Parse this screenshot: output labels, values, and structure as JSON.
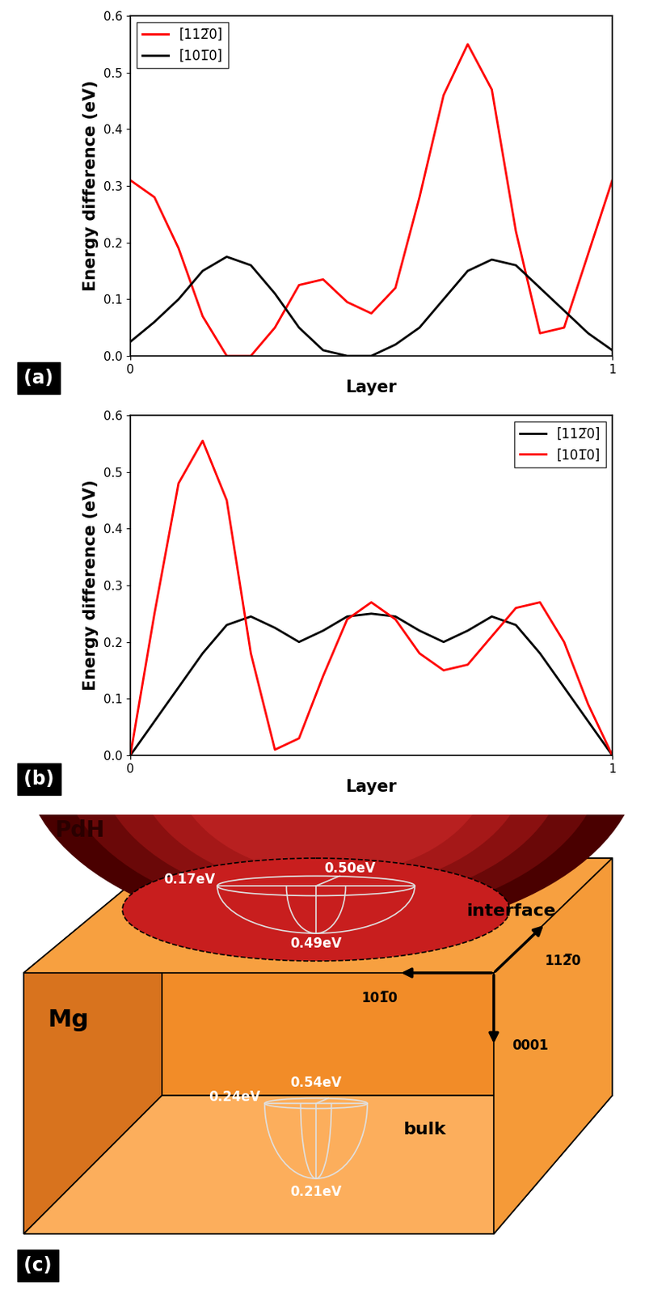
{
  "chart_data": [
    {
      "type": "line",
      "panel_label": "(a)",
      "x_label": "Layer",
      "y_label": "Energy difference (eV)",
      "x": [
        0.0,
        0.05,
        0.1,
        0.15,
        0.2,
        0.25,
        0.3,
        0.35,
        0.4,
        0.45,
        0.5,
        0.55,
        0.6,
        0.65,
        0.7,
        0.75,
        0.8,
        0.85,
        0.9,
        0.95,
        1.0
      ],
      "series": [
        {
          "name": "[112̅0]",
          "color": "#ff0000",
          "values": [
            0.31,
            0.28,
            0.19,
            0.07,
            0.0,
            0.0,
            0.05,
            0.125,
            0.135,
            0.095,
            0.075,
            0.12,
            0.28,
            0.46,
            0.55,
            0.47,
            0.22,
            0.04,
            0.05,
            0.18,
            0.31
          ]
        },
        {
          "name": "[101̅0]",
          "color": "#000000",
          "values": [
            0.025,
            0.06,
            0.1,
            0.15,
            0.175,
            0.16,
            0.11,
            0.05,
            0.01,
            0.0,
            0.0,
            0.02,
            0.05,
            0.1,
            0.15,
            0.17,
            0.16,
            0.12,
            0.08,
            0.04,
            0.01
          ]
        }
      ],
      "xlim": [
        0,
        1
      ],
      "ylim": [
        0.0,
        0.6
      ],
      "xticks": [
        0,
        1
      ],
      "yticks": [
        0.0,
        0.1,
        0.2,
        0.3,
        0.4,
        0.5,
        0.6
      ],
      "legend": "upper left"
    },
    {
      "type": "line",
      "panel_label": "(b)",
      "x_label": "Layer",
      "y_label": "Energy difference (eV)",
      "x": [
        0.0,
        0.05,
        0.1,
        0.15,
        0.2,
        0.25,
        0.3,
        0.35,
        0.4,
        0.45,
        0.5,
        0.55,
        0.6,
        0.65,
        0.7,
        0.75,
        0.8,
        0.85,
        0.9,
        0.95,
        1.0
      ],
      "series": [
        {
          "name": "[112̅0]",
          "color": "#000000",
          "values": [
            0.0,
            0.06,
            0.12,
            0.18,
            0.23,
            0.245,
            0.225,
            0.2,
            0.22,
            0.245,
            0.25,
            0.245,
            0.22,
            0.2,
            0.22,
            0.245,
            0.23,
            0.18,
            0.12,
            0.06,
            0.0
          ]
        },
        {
          "name": "[101̅0]",
          "color": "#ff0000",
          "values": [
            0.0,
            0.25,
            0.48,
            0.555,
            0.45,
            0.18,
            0.01,
            0.03,
            0.14,
            0.24,
            0.27,
            0.24,
            0.18,
            0.15,
            0.16,
            0.21,
            0.26,
            0.27,
            0.2,
            0.09,
            0.0
          ]
        }
      ],
      "xlim": [
        0,
        1
      ],
      "ylim": [
        0.0,
        0.6
      ],
      "xticks": [
        0,
        1
      ],
      "yticks": [
        0.0,
        0.1,
        0.2,
        0.3,
        0.4,
        0.5,
        0.6
      ],
      "legend": "upper right"
    }
  ],
  "diagram": {
    "panel_label": "(c)",
    "top_material": "PdH",
    "block_material": "Mg",
    "interface": {
      "label": "interface",
      "energies": [
        "0.17eV",
        "0.50eV",
        "0.49eV"
      ]
    },
    "bulk": {
      "label": "bulk",
      "energies": [
        "0.24eV",
        "0.54eV",
        "0.21eV"
      ]
    },
    "directions": [
      "101̅0",
      "112̅0",
      "0001"
    ]
  }
}
